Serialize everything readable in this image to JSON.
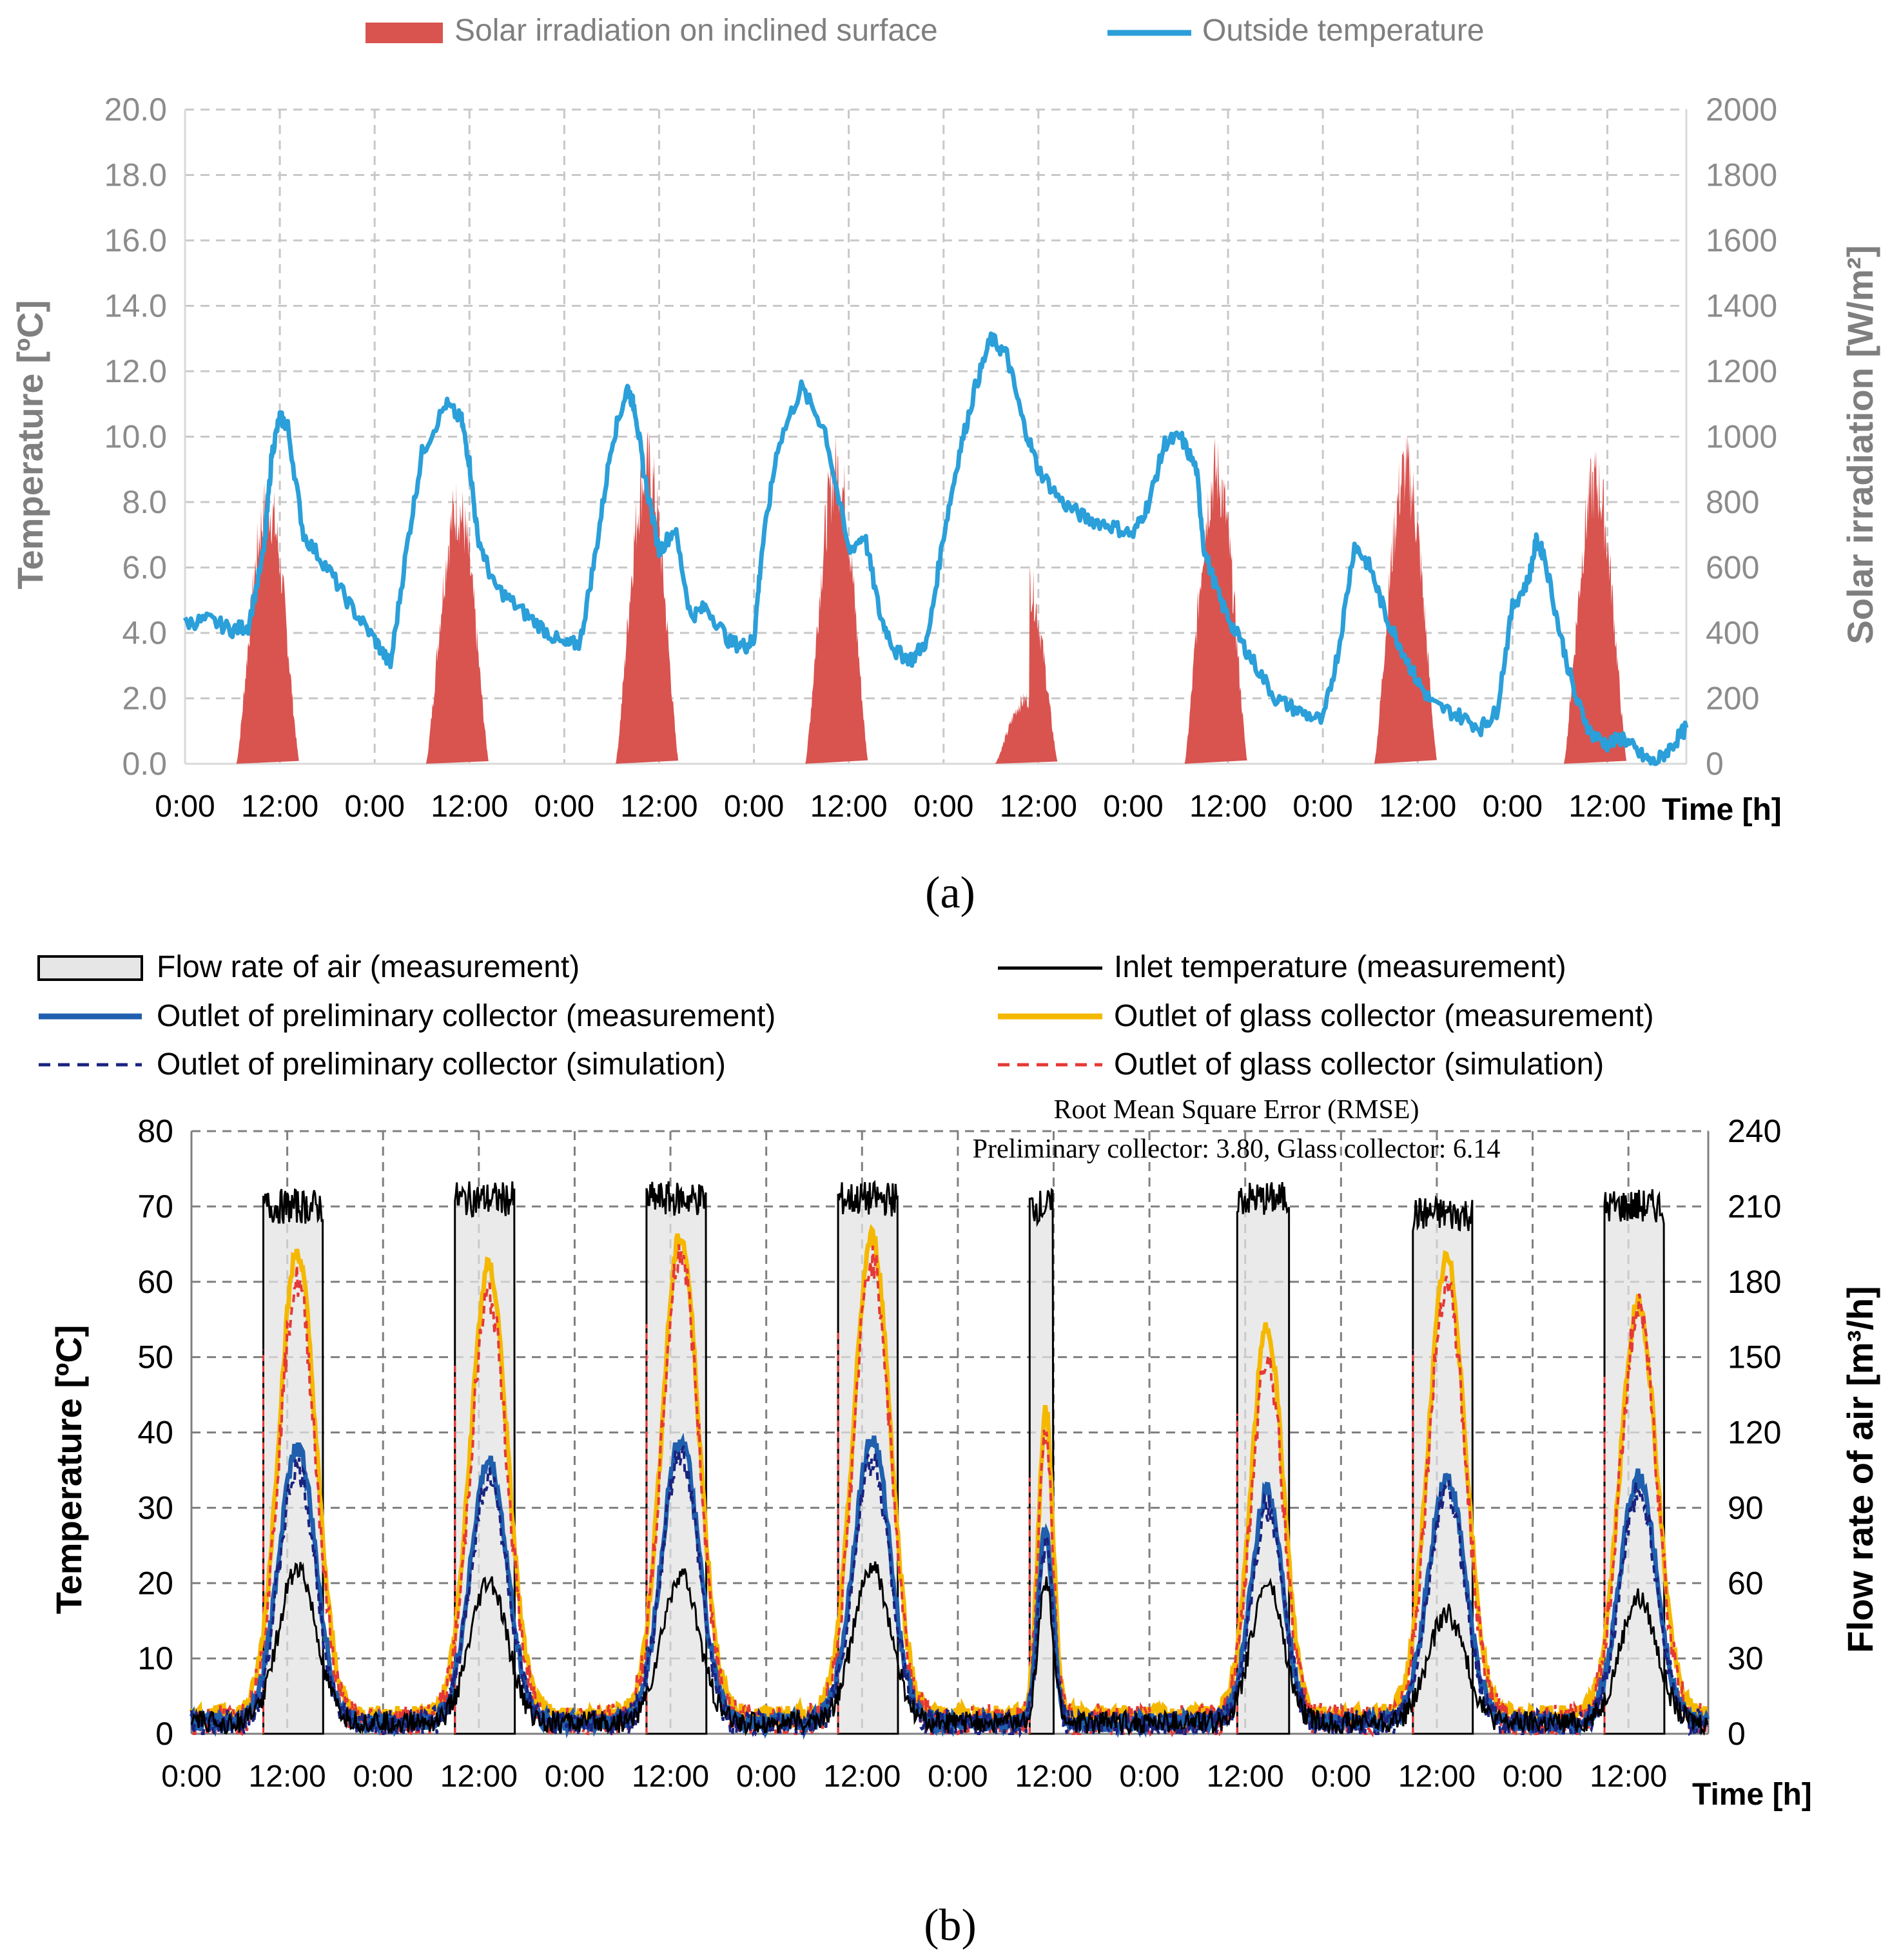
{
  "chart_data": [
    {
      "type": "bar+line",
      "panel_label": "(a)",
      "panel_letter": "a",
      "legend": [
        {
          "name": "Solar irradiation on inclined surface",
          "kind": "bar",
          "color": "#d9534f"
        },
        {
          "name": "Outside temperature",
          "kind": "line",
          "color": "#2b9fd9"
        }
      ],
      "ylabel_left": "Temperature [ºC]",
      "ylabel_right": "Solar irradiation [W/m²]",
      "xlabel": "Time [h]",
      "ylim_left": [
        0,
        20
      ],
      "ylim_right": [
        0,
        2000
      ],
      "yticks_left": [
        "0.0",
        "2.0",
        "4.0",
        "6.0",
        "8.0",
        "10.0",
        "12.0",
        "14.0",
        "16.0",
        "18.0",
        "20.0"
      ],
      "yticks_right": [
        "0",
        "200",
        "400",
        "600",
        "800",
        "1000",
        "1200",
        "1400",
        "1600",
        "1800",
        "2000"
      ],
      "xticks": [
        "0:00",
        "12:00",
        "0:00",
        "12:00",
        "0:00",
        "12:00",
        "0:00",
        "12:00",
        "0:00",
        "12:00",
        "0:00",
        "12:00",
        "0:00",
        "12:00",
        "0:00",
        "12:00"
      ],
      "x_unit": "hours",
      "xlim": [
        0,
        190
      ],
      "grid": true,
      "solar_peaks_w_m2": [
        {
          "day": 1,
          "peak": 900,
          "start_h": 6.5,
          "end_h": 14.5
        },
        {
          "day": 2,
          "peak": 890,
          "start_h": 6.5,
          "end_h": 14.5
        },
        {
          "day": 3,
          "peak": 1030,
          "start_h": 6.5,
          "end_h": 14.5
        },
        {
          "day": 4,
          "peak": 1020,
          "start_h": 6.5,
          "end_h": 14.5
        },
        {
          "day": 5,
          "peak": 640,
          "start_h": 6.5,
          "end_h": 14.5
        },
        {
          "day": 6,
          "peak": 1010,
          "start_h": 6.5,
          "end_h": 14.5
        },
        {
          "day": 7,
          "peak": 1020,
          "start_h": 6.5,
          "end_h": 14.5
        },
        {
          "day": 8,
          "peak": 980,
          "start_h": 6.5,
          "end_h": 14.5
        }
      ],
      "outside_temperature": {
        "x_h": [
          0,
          3,
          6,
          8,
          10,
          11,
          12,
          13,
          15,
          18,
          21,
          24,
          26,
          28,
          30,
          33,
          35,
          36,
          37,
          39,
          42,
          45,
          48,
          50,
          52,
          54,
          56,
          57,
          58,
          60,
          62,
          64,
          66,
          69,
          71,
          72,
          73,
          75,
          78,
          81,
          84,
          86,
          88,
          90,
          92,
          94,
          96,
          98,
          100,
          102,
          104,
          106,
          108,
          111,
          114,
          117,
          120,
          122,
          124,
          126,
          128,
          129,
          131,
          133,
          135,
          138,
          141,
          144,
          146,
          148,
          150,
          152,
          154,
          156,
          158,
          161,
          164,
          166,
          168,
          170,
          171,
          172,
          174,
          176,
          178,
          180,
          182,
          184,
          186,
          188,
          190
        ],
        "y_c": [
          4.3,
          4.4,
          4.1,
          4.2,
          6.5,
          9.5,
          10.6,
          10.3,
          7.0,
          6.0,
          4.8,
          3.8,
          3.0,
          6.5,
          9.5,
          11.0,
          10.5,
          9.2,
          7.0,
          5.5,
          4.8,
          4.2,
          3.6,
          3.7,
          6.5,
          9.8,
          11.5,
          10.8,
          9.0,
          6.5,
          7.2,
          4.5,
          4.8,
          3.7,
          3.6,
          3.8,
          6.5,
          9.7,
          11.5,
          10.2,
          6.5,
          7.0,
          4.5,
          3.4,
          3.2,
          3.8,
          7.0,
          9.5,
          11.5,
          13.0,
          12.5,
          10.5,
          9.0,
          8.0,
          7.5,
          7.3,
          7.0,
          8.0,
          9.8,
          10.0,
          9.0,
          6.5,
          5.0,
          4.0,
          3.2,
          2.0,
          1.6,
          1.3,
          3.5,
          6.7,
          6.0,
          4.5,
          3.5,
          2.5,
          1.8,
          1.5,
          1.1,
          1.6,
          4.8,
          5.6,
          6.8,
          6.4,
          4.0,
          2.0,
          0.9,
          0.6,
          0.8,
          0.3,
          0.0,
          0.5,
          1.1
        ]
      }
    },
    {
      "type": "bar+line",
      "panel_label": "(b)",
      "panel_letter": "b",
      "legend": [
        {
          "name": "Flow rate of air (measurement)",
          "kind": "box",
          "color": "#000000"
        },
        {
          "name": "Inlet temperature (measurement)",
          "kind": "line",
          "color": "#000000"
        },
        {
          "name": "Outlet of preliminary collector (measurement)",
          "kind": "line",
          "color": "#1f5fae"
        },
        {
          "name": "Outlet of glass collector (measurement)",
          "kind": "line",
          "color": "#f5b800"
        },
        {
          "name": "Outlet of preliminary collector (simulation)",
          "kind": "dashed",
          "color": "#1a237e"
        },
        {
          "name": "Outlet of glass collector (simulation)",
          "kind": "dashed",
          "color": "#e53935"
        }
      ],
      "annotation_title": "Root Mean Square Error (RMSE)",
      "annotation_values": "Preliminary collector: 3.80, Glass collector: 6.14",
      "ylabel_left": "Temperature [ºC]",
      "ylabel_right": "Flow rate of air [m³/h]",
      "xlabel": "Time [h]",
      "ylim_left": [
        0,
        80
      ],
      "ylim_right": [
        0,
        240
      ],
      "yticks_left": [
        "0",
        "10",
        "20",
        "30",
        "40",
        "50",
        "60",
        "70",
        "80"
      ],
      "yticks_right": [
        "0",
        "30",
        "60",
        "90",
        "120",
        "150",
        "180",
        "210",
        "240"
      ],
      "xticks": [
        "0:00",
        "12:00",
        "0:00",
        "12:00",
        "0:00",
        "12:00",
        "0:00",
        "12:00",
        "0:00",
        "12:00",
        "0:00",
        "12:00",
        "0:00",
        "12:00",
        "0:00",
        "12:00"
      ],
      "xlim": [
        0,
        190
      ],
      "grid": true,
      "days": [
        {
          "start_h": 9,
          "end_h": 16.5,
          "flow": 210,
          "glass_meas": 64,
          "glass_sim": 60,
          "prelim_meas": 38,
          "prelim_sim": 35,
          "inlet": 22
        },
        {
          "start_h": 33,
          "end_h": 40.5,
          "flow": 213,
          "glass_meas": 62,
          "glass_sim": 58,
          "prelim_meas": 36,
          "prelim_sim": 34,
          "inlet": 20
        },
        {
          "start_h": 57,
          "end_h": 64.5,
          "flow": 213,
          "glass_meas": 66,
          "glass_sim": 64,
          "prelim_meas": 39,
          "prelim_sim": 37,
          "inlet": 21
        },
        {
          "start_h": 81,
          "end_h": 88.5,
          "flow": 213,
          "glass_meas": 66,
          "glass_sim": 63,
          "prelim_meas": 39,
          "prelim_sim": 36,
          "inlet": 22
        },
        {
          "start_h": 105,
          "end_h": 108,
          "flow": 210,
          "glass_meas": 43,
          "glass_sim": 40,
          "prelim_meas": 27,
          "prelim_sim": 25,
          "inlet": 20
        },
        {
          "start_h": 131,
          "end_h": 137.5,
          "flow": 213,
          "glass_meas": 54,
          "glass_sim": 50,
          "prelim_meas": 32,
          "prelim_sim": 30,
          "inlet": 20
        },
        {
          "start_h": 153,
          "end_h": 160.5,
          "flow": 207,
          "glass_meas": 63,
          "glass_sim": 60,
          "prelim_meas": 34,
          "prelim_sim": 32,
          "inlet": 16
        },
        {
          "start_h": 177,
          "end_h": 184.5,
          "flow": 210,
          "glass_meas": 57,
          "glass_sim": 56,
          "prelim_meas": 34,
          "prelim_sim": 32,
          "inlet": 18
        }
      ]
    }
  ]
}
